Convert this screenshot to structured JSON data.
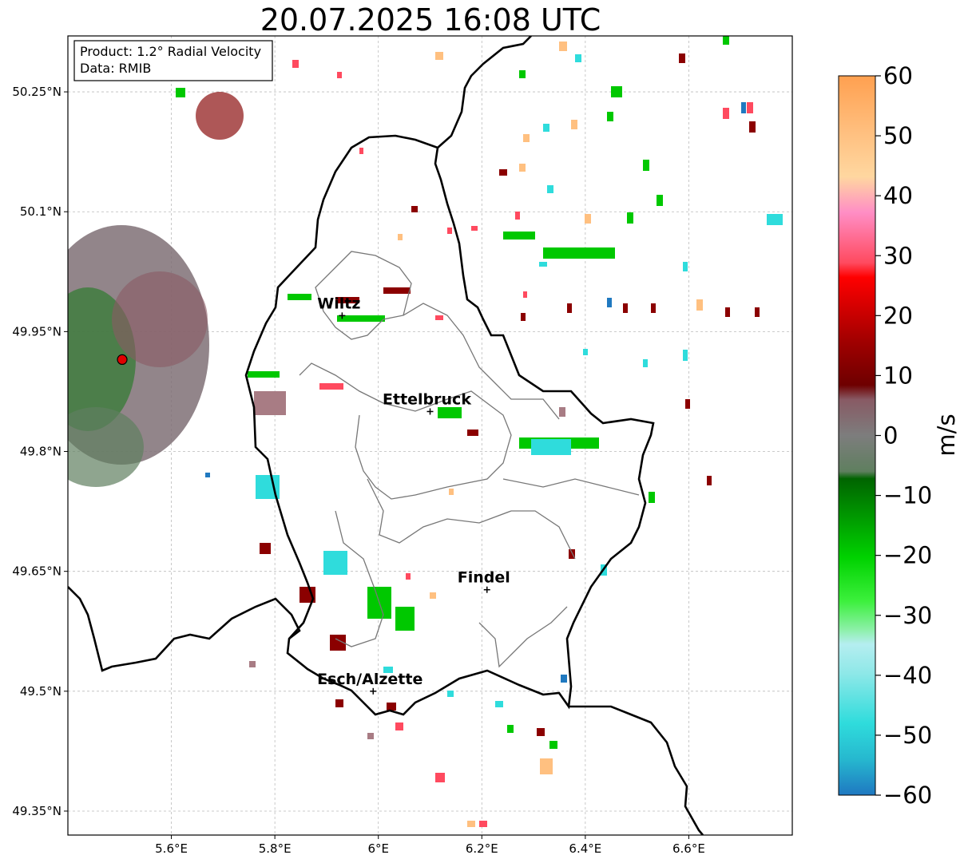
{
  "title": "20.07.2025 16:08 UTC",
  "info_box": {
    "product_line": "Product: 1.2° Radial Velocity",
    "data_line": "Data: RMIB"
  },
  "map": {
    "lon_range": [
      5.4,
      6.8
    ],
    "lat_range": [
      49.32,
      50.32
    ],
    "x_ticks": [
      {
        "value": 5.6,
        "label": "5.6°E"
      },
      {
        "value": 5.8,
        "label": "5.8°E"
      },
      {
        "value": 6.0,
        "label": "6°E"
      },
      {
        "value": 6.2,
        "label": "6.2°E"
      },
      {
        "value": 6.4,
        "label": "6.4°E"
      },
      {
        "value": 6.6,
        "label": "6.6°E"
      }
    ],
    "y_ticks": [
      {
        "value": 50.25,
        "label": "50.25°N"
      },
      {
        "value": 50.1,
        "label": "50.1°N"
      },
      {
        "value": 49.95,
        "label": "49.95°N"
      },
      {
        "value": 49.8,
        "label": "49.8°N"
      },
      {
        "value": 49.65,
        "label": "49.65°N"
      },
      {
        "value": 49.5,
        "label": "49.5°N"
      },
      {
        "value": 49.35,
        "label": "49.35°N"
      }
    ],
    "grid": true,
    "radar_site": {
      "lon": 5.505,
      "lat": 49.915,
      "color": "#e00000"
    },
    "cities": [
      {
        "name": "Wiltz",
        "lon": 5.93,
        "lat": 49.97
      },
      {
        "name": "Ettelbruck",
        "lon": 6.1,
        "lat": 49.85
      },
      {
        "name": "Findel",
        "lon": 6.21,
        "lat": 49.627
      },
      {
        "name": "Esch/Alzette",
        "lon": 5.99,
        "lat": 49.5
      }
    ]
  },
  "colorbar": {
    "label": "m/s",
    "min": -60,
    "max": 60,
    "ticks": [
      {
        "value": 60,
        "label": "60"
      },
      {
        "value": 50,
        "label": "50"
      },
      {
        "value": 40,
        "label": "40"
      },
      {
        "value": 30,
        "label": "30"
      },
      {
        "value": 20,
        "label": "20"
      },
      {
        "value": 10,
        "label": "10"
      },
      {
        "value": 0,
        "label": "0"
      },
      {
        "value": -10,
        "label": "−10"
      },
      {
        "value": -20,
        "label": "−20"
      },
      {
        "value": -30,
        "label": "−30"
      },
      {
        "value": -40,
        "label": "−40"
      },
      {
        "value": -50,
        "label": "−50"
      },
      {
        "value": -60,
        "label": "−60"
      }
    ]
  }
}
